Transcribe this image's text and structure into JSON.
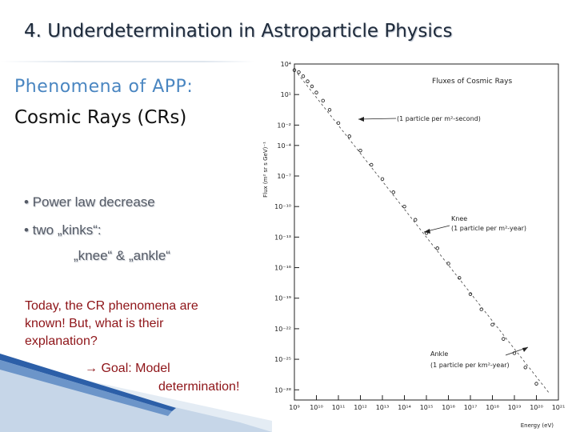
{
  "slide": {
    "title": "4. Underdetermination in Astroparticle Physics",
    "heading": "Phenomena of APP:",
    "subheading": "Cosmic Rays (CRs)",
    "bullets": [
      "• Power law decrease",
      "• two „kinks“:",
      "„knee“ & „ankle“"
    ],
    "conclusion": [
      "Today, the CR phenomena are",
      "known! But, what is their",
      "explanation?"
    ],
    "goal_arrow": "→",
    "goal_line1": "Goal: Model",
    "goal_line2": "determination!"
  },
  "chart_data": {
    "type": "scatter",
    "title": "Fluxes of Cosmic Rays",
    "xlabel": "Energy (eV)",
    "ylabel": "Flux (m² sr s GeV)⁻¹",
    "xscale": "log",
    "yscale": "log",
    "xlim_exp": [
      9,
      21
    ],
    "ylim_exp": [
      -29,
      4
    ],
    "x_ticks": [
      "10⁹",
      "10¹⁰",
      "10¹¹",
      "10¹²",
      "10¹³",
      "10¹⁴",
      "10¹⁵",
      "10¹⁶",
      "10¹⁷",
      "10¹⁸",
      "10¹⁹",
      "10²⁰",
      "10²¹"
    ],
    "y_ticks": [
      "10⁴",
      "10¹",
      "10⁻²",
      "10⁻⁴",
      "10⁻⁷",
      "10⁻¹⁰",
      "10⁻¹³",
      "10⁻¹⁶",
      "10⁻¹⁹",
      "10⁻²²",
      "10⁻²⁵",
      "10⁻²⁸"
    ],
    "y_tick_exps": [
      4,
      1,
      -2,
      -4,
      -7,
      -10,
      -13,
      -16,
      -19,
      -22,
      -25,
      -28
    ],
    "annotations": [
      {
        "text": "(1 particle per m²-second)",
        "x_exp": 11,
        "y_exp": 0
      },
      {
        "text": "Knee",
        "text2": "(1 particle per m²-year)",
        "x_exp": 15.5,
        "y_exp": -12.5
      },
      {
        "text": "Ankle",
        "text2": "(1 particle per km²-year)",
        "x_exp": 18.7,
        "y_exp": -24.5
      }
    ],
    "series": [
      {
        "x_exp": [
          9.0,
          9.2,
          9.4,
          9.6,
          9.8,
          10.0,
          10.3,
          10.6,
          11.0,
          11.5,
          12.0,
          12.5,
          13.0,
          13.5,
          14.0,
          14.5,
          15.0,
          15.5,
          16.0,
          16.5,
          17.0,
          17.5,
          18.0,
          18.5,
          19.0,
          19.5,
          20.0
        ],
        "y_exp": [
          3.4,
          3.2,
          2.8,
          2.3,
          1.8,
          1.2,
          0.4,
          -0.5,
          -1.8,
          -3.1,
          -4.5,
          -5.9,
          -7.3,
          -8.6,
          -10.0,
          -11.3,
          -12.6,
          -14.1,
          -15.6,
          -17.0,
          -18.6,
          -20.1,
          -21.6,
          -23.0,
          -24.4,
          -25.8,
          -27.4
        ]
      }
    ]
  }
}
